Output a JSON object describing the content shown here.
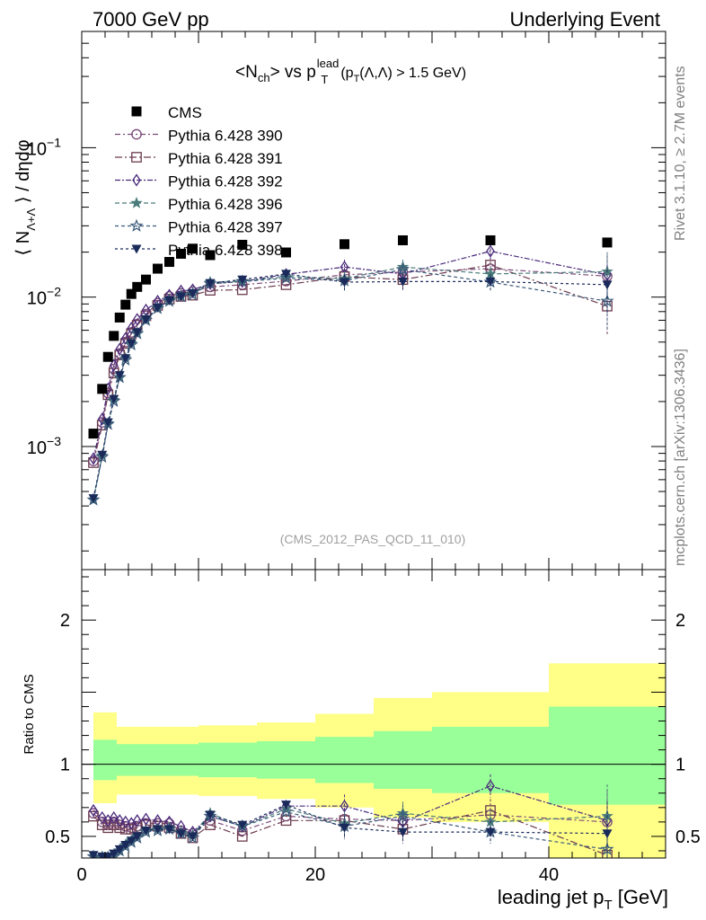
{
  "header": {
    "left": "7000 GeV pp",
    "right": "Underlying Event",
    "side_top": "Rivet 3.1.10, ≥ 2.7M events",
    "side_bottom": "mcplots.cern.ch [arXiv:1306.3436]"
  },
  "colors": {
    "cms": "#000000",
    "band_inner": "#99ff99",
    "band_outer": "#ffff88",
    "p390": "#7a4a7a",
    "p391": "#6b3a4e",
    "p392": "#4b2a7a",
    "p396": "#4a7a7a",
    "p397": "#3a5a7a",
    "p398": "#1a2a5a"
  },
  "chart_data": [
    {
      "type": "scatter",
      "title": "<N_ch> vs p_T^lead (p_T(Λ,Λ̄) > 1.5 GeV)",
      "title_parts": {
        "main": "<N",
        "sub1": "ch",
        "mid": "> vs p",
        "sup": "lead",
        "sub2": "T",
        "cut_open": "(p",
        "cut_sub": "T",
        "cut_rest": "(Λ,Λ) > 1.5 GeV)"
      },
      "ylabel": "⟨ NΛ+Λ ⟩ / dηdφ",
      "ylabel_parts": {
        "open": "⟨ N",
        "sub": "Λ+Λ",
        "close": "⟩ / dηdφ"
      },
      "watermark": "(CMS_2012_PAS_QCD_11_010)",
      "xlim": [
        0,
        50
      ],
      "ylim": [
        0.00015,
        0.6
      ],
      "yscale": "log",
      "ytick_labels": [
        {
          "value": 0.001,
          "base": "10",
          "exp": "−3"
        },
        {
          "value": 0.01,
          "base": "10",
          "exp": "−2"
        },
        {
          "value": 0.1,
          "base": "10",
          "exp": "−1"
        }
      ],
      "legend_placement": "upper-left",
      "series": [
        {
          "name": "CMS",
          "marker": "square-filled",
          "dash": "none",
          "color": "#000000",
          "x": [
            1.0,
            1.75,
            2.25,
            2.75,
            3.25,
            3.75,
            4.25,
            4.75,
            5.5,
            6.5,
            7.5,
            8.5,
            9.5,
            11.0,
            13.75,
            17.5,
            22.5,
            27.5,
            35.0,
            45.0
          ],
          "y": [
            0.00122,
            0.00243,
            0.00398,
            0.0055,
            0.0073,
            0.0089,
            0.0105,
            0.0117,
            0.0131,
            0.0155,
            0.0172,
            0.0195,
            0.0211,
            0.0191,
            0.0224,
            0.0199,
            0.0226,
            0.024,
            0.024,
            0.0232
          ]
        },
        {
          "name": "Pythia 6.428 390",
          "marker": "circle-open",
          "dash": "6,3,2,3",
          "color": "#7a4a7a",
          "x": [
            1.0,
            1.75,
            2.25,
            2.75,
            3.25,
            3.75,
            4.25,
            4.75,
            5.5,
            6.5,
            7.5,
            8.5,
            9.5,
            11.0,
            13.75,
            17.5,
            22.5,
            27.5,
            35.0,
            45.0
          ],
          "y": [
            0.0008,
            0.00145,
            0.00228,
            0.0033,
            0.0042,
            0.005,
            0.0058,
            0.0066,
            0.0077,
            0.0091,
            0.0101,
            0.0106,
            0.0109,
            0.0117,
            0.0121,
            0.0128,
            0.0141,
            0.0147,
            0.0155,
            0.0138
          ]
        },
        {
          "name": "Pythia 6.428 391",
          "marker": "square-open",
          "dash": "8,3,2,3",
          "color": "#6b3a4e",
          "x": [
            1.0,
            1.75,
            2.25,
            2.75,
            3.25,
            3.75,
            4.25,
            4.75,
            5.5,
            6.5,
            7.5,
            8.5,
            9.5,
            11.0,
            13.75,
            17.5,
            22.5,
            27.5,
            35.0,
            45.0
          ],
          "y": [
            0.00078,
            0.00139,
            0.00222,
            0.0031,
            0.0041,
            0.0049,
            0.0057,
            0.0065,
            0.0075,
            0.0088,
            0.0097,
            0.0101,
            0.0103,
            0.0111,
            0.0112,
            0.0121,
            0.0137,
            0.0131,
            0.0164,
            0.0087
          ]
        },
        {
          "name": "Pythia 6.428 392",
          "marker": "diamond-open",
          "dash": "6,2,2,2",
          "color": "#4b2a7a",
          "x": [
            1.0,
            1.75,
            2.25,
            2.75,
            3.25,
            3.75,
            4.25,
            4.75,
            5.5,
            6.5,
            7.5,
            8.5,
            9.5,
            11.0,
            13.75,
            17.5,
            22.5,
            27.5,
            35.0,
            45.0
          ],
          "y": [
            0.00083,
            0.00153,
            0.00243,
            0.0035,
            0.0045,
            0.0053,
            0.0062,
            0.0071,
            0.0082,
            0.0094,
            0.0103,
            0.011,
            0.0112,
            0.0123,
            0.0127,
            0.0142,
            0.0159,
            0.0143,
            0.0203,
            0.0141
          ]
        },
        {
          "name": "Pythia 6.428 396",
          "marker": "star-filled",
          "dash": "5,3",
          "color": "#4a7a7a",
          "x": [
            1.0,
            1.75,
            2.25,
            2.75,
            3.25,
            3.75,
            4.25,
            4.75,
            5.5,
            6.5,
            7.5,
            8.5,
            9.5,
            11.0,
            13.75,
            17.5,
            22.5,
            27.5,
            35.0,
            45.0
          ],
          "y": [
            0.00044,
            0.00087,
            0.00143,
            0.00205,
            0.0029,
            0.0039,
            0.0049,
            0.0058,
            0.0071,
            0.0085,
            0.0096,
            0.0103,
            0.0107,
            0.0126,
            0.0128,
            0.0137,
            0.0133,
            0.0159,
            0.0143,
            0.0148
          ]
        },
        {
          "name": "Pythia 6.428 397",
          "marker": "star-open",
          "dash": "4,3",
          "color": "#3a5a7a",
          "x": [
            1.0,
            1.75,
            2.25,
            2.75,
            3.25,
            3.75,
            4.25,
            4.75,
            5.5,
            6.5,
            7.5,
            8.5,
            9.5,
            11.0,
            13.75,
            17.5,
            22.5,
            27.5,
            35.0,
            45.0
          ],
          "y": [
            0.00044,
            0.00085,
            0.00141,
            0.00201,
            0.0029,
            0.0038,
            0.0048,
            0.0057,
            0.007,
            0.0084,
            0.0094,
            0.0101,
            0.0104,
            0.0123,
            0.0127,
            0.0134,
            0.0129,
            0.0153,
            0.0126,
            0.0094
          ]
        },
        {
          "name": "Pythia 6.428 398",
          "marker": "triangle-down-filled",
          "dash": "3,3",
          "color": "#1a2a5a",
          "x": [
            1.0,
            1.75,
            2.25,
            2.75,
            3.25,
            3.75,
            4.25,
            4.75,
            5.5,
            6.5,
            7.5,
            8.5,
            9.5,
            11.0,
            13.75,
            17.5,
            22.5,
            27.5,
            35.0,
            45.0
          ],
          "y": [
            0.00045,
            0.00088,
            0.00145,
            0.00208,
            0.003,
            0.0039,
            0.0049,
            0.0058,
            0.0071,
            0.0085,
            0.0095,
            0.0101,
            0.0106,
            0.0124,
            0.0131,
            0.0143,
            0.0126,
            0.0127,
            0.0127,
            0.0121
          ]
        }
      ]
    },
    {
      "type": "scatter",
      "ylabel": "Ratio to CMS",
      "xlabel": "leading jet p_T [GeV]",
      "xlabel_parts": {
        "main": "leading jet p",
        "sub": "T",
        "rest": " [GeV]"
      },
      "xlim": [
        0,
        50
      ],
      "ylim": [
        0.35,
        2.35
      ],
      "xticks": [
        0,
        20,
        40
      ],
      "yticks": [
        0.5,
        1,
        2
      ],
      "ytick_labels": [
        "0.5",
        "1",
        "2"
      ],
      "reference_line": 1,
      "bands": [
        {
          "x0": 1.0,
          "x1": 3.0,
          "inner": [
            0.89,
            1.17
          ],
          "outer": [
            0.73,
            1.36
          ]
        },
        {
          "x0": 3.0,
          "x1": 10.0,
          "inner": [
            0.92,
            1.14
          ],
          "outer": [
            0.79,
            1.26
          ]
        },
        {
          "x0": 10.0,
          "x1": 15.0,
          "inner": [
            0.91,
            1.15
          ],
          "outer": [
            0.78,
            1.27
          ]
        },
        {
          "x0": 15.0,
          "x1": 20.0,
          "inner": [
            0.9,
            1.16
          ],
          "outer": [
            0.76,
            1.29
          ]
        },
        {
          "x0": 20.0,
          "x1": 25.0,
          "inner": [
            0.87,
            1.19
          ],
          "outer": [
            0.7,
            1.35
          ]
        },
        {
          "x0": 25.0,
          "x1": 30.0,
          "inner": [
            0.83,
            1.23
          ],
          "outer": [
            0.63,
            1.46
          ]
        },
        {
          "x0": 30.0,
          "x1": 40.0,
          "inner": [
            0.8,
            1.26
          ],
          "outer": [
            0.6,
            1.5
          ]
        },
        {
          "x0": 40.0,
          "x1": 50.0,
          "inner": [
            0.72,
            1.4
          ],
          "outer": [
            0.3,
            1.7
          ]
        }
      ],
      "series": [
        {
          "name": "Pythia 6.428 390",
          "y": [
            0.66,
            0.6,
            0.58,
            0.6,
            0.58,
            0.57,
            0.56,
            0.57,
            0.59,
            0.59,
            0.59,
            0.54,
            0.52,
            0.61,
            0.54,
            0.64,
            0.62,
            0.61,
            0.65,
            0.6
          ]
        },
        {
          "name": "Pythia 6.428 391",
          "y": [
            0.64,
            0.58,
            0.56,
            0.58,
            0.56,
            0.55,
            0.55,
            0.56,
            0.58,
            0.57,
            0.56,
            0.52,
            0.49,
            0.58,
            0.5,
            0.61,
            0.61,
            0.55,
            0.68,
            0.37
          ]
        },
        {
          "name": "Pythia 6.428 392",
          "y": [
            0.68,
            0.63,
            0.61,
            0.63,
            0.61,
            0.6,
            0.59,
            0.61,
            0.62,
            0.61,
            0.6,
            0.57,
            0.53,
            0.64,
            0.57,
            0.71,
            0.71,
            0.6,
            0.85,
            0.61
          ]
        },
        {
          "name": "Pythia 6.428 396",
          "y": [
            0.36,
            0.36,
            0.36,
            0.37,
            0.4,
            0.44,
            0.47,
            0.5,
            0.54,
            0.55,
            0.56,
            0.53,
            0.51,
            0.66,
            0.57,
            0.69,
            0.59,
            0.66,
            0.6,
            0.64
          ]
        },
        {
          "name": "Pythia 6.428 397",
          "y": [
            0.36,
            0.35,
            0.35,
            0.36,
            0.4,
            0.43,
            0.46,
            0.49,
            0.53,
            0.54,
            0.55,
            0.52,
            0.49,
            0.64,
            0.57,
            0.67,
            0.57,
            0.64,
            0.53,
            0.41
          ]
        },
        {
          "name": "Pythia 6.428 398",
          "y": [
            0.37,
            0.36,
            0.36,
            0.38,
            0.41,
            0.44,
            0.47,
            0.5,
            0.54,
            0.55,
            0.55,
            0.52,
            0.5,
            0.65,
            0.58,
            0.72,
            0.56,
            0.53,
            0.53,
            0.52
          ]
        }
      ]
    }
  ]
}
